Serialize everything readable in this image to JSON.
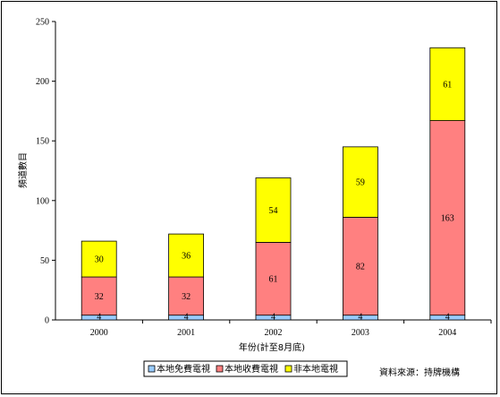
{
  "chart_data": {
    "type": "bar",
    "stacked": true,
    "categories": [
      "2000",
      "2001",
      "2002",
      "2003",
      "2004"
    ],
    "series": [
      {
        "name": "本地免費電視",
        "values": [
          4,
          4,
          4,
          4,
          4
        ],
        "color": "#99ccff"
      },
      {
        "name": "本地收費電視",
        "values": [
          32,
          32,
          61,
          82,
          163
        ],
        "color": "#ff8080"
      },
      {
        "name": "非本地電視",
        "values": [
          30,
          36,
          54,
          59,
          61
        ],
        "color": "#ffff00"
      }
    ],
    "xlabel": "年份(計至8月底)",
    "ylabel": "頻道數目",
    "ylim": [
      0,
      250
    ],
    "yticks": [
      0,
      50,
      100,
      150,
      200,
      250
    ],
    "legend_position": "bottom",
    "grid": false
  },
  "source_note": "資料來源：持牌機構"
}
